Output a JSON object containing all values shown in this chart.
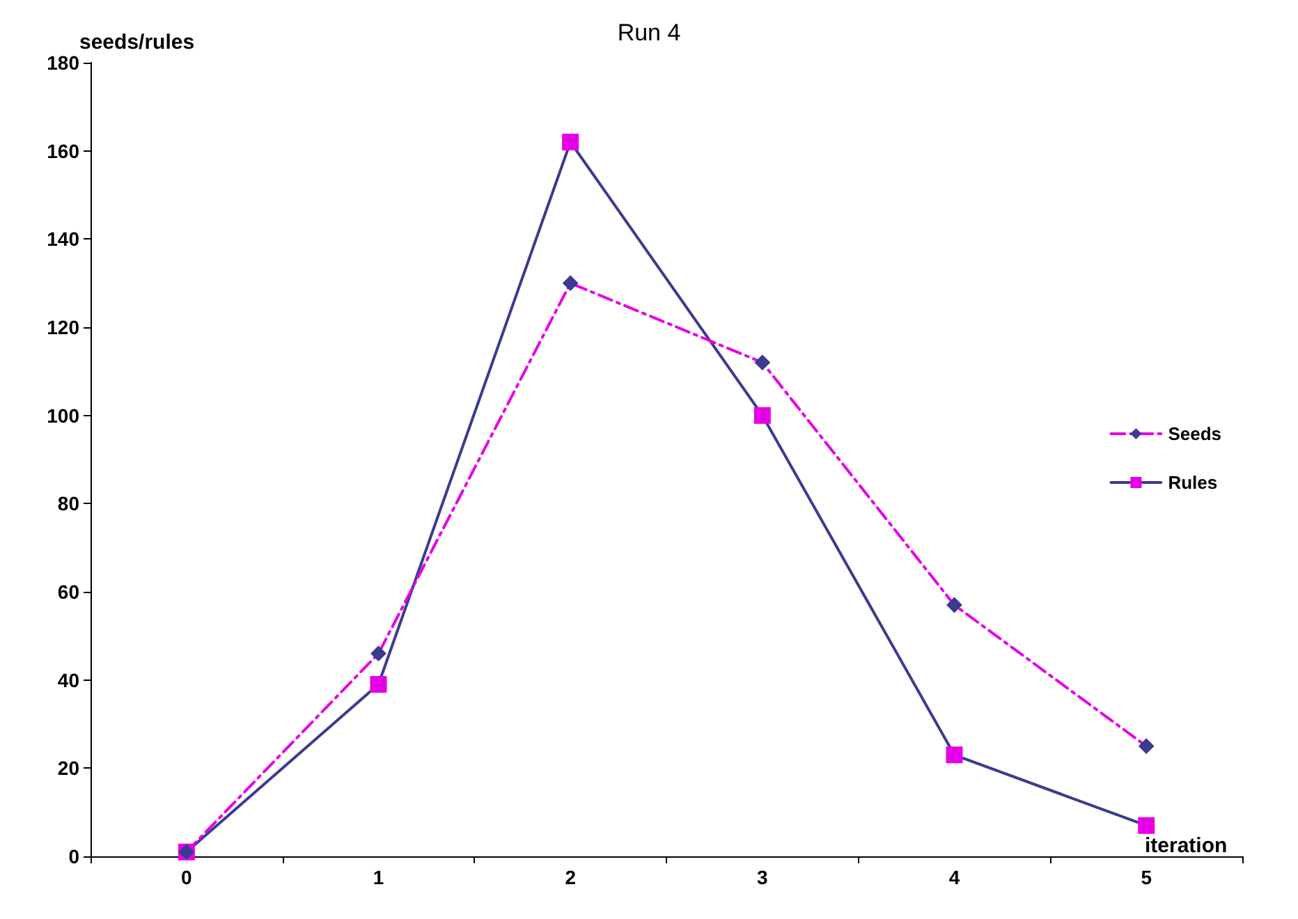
{
  "chart_data": {
    "type": "line",
    "title": "Run 4",
    "xlabel": "iteration",
    "ylabel": "seeds/rules",
    "categories": [
      "0",
      "1",
      "2",
      "3",
      "4",
      "5"
    ],
    "series": [
      {
        "name": "Seeds",
        "color": "#3b3b8f",
        "values": [
          1,
          46,
          130,
          112,
          57,
          25
        ],
        "marker": "diamond",
        "line_style": "dashed"
      },
      {
        "name": "Rules",
        "color": "#e600e6",
        "values": [
          1,
          39,
          162,
          100,
          23,
          7
        ],
        "marker": "square",
        "line_style": "solid"
      }
    ],
    "ylim": [
      0,
      180
    ],
    "yticks": [
      0,
      20,
      40,
      60,
      80,
      100,
      120,
      140,
      160,
      180
    ],
    "grid": false,
    "legend": "right"
  }
}
